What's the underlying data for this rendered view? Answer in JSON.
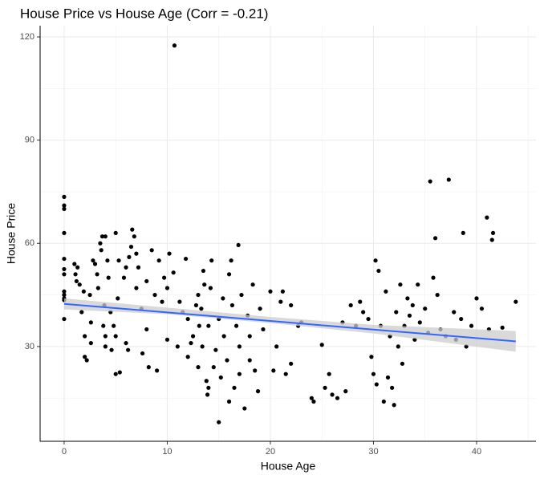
{
  "chart_data": {
    "type": "scatter",
    "title": "House Price vs House Age (Corr = -0.21)",
    "xlabel": "House Age",
    "ylabel": "House Price",
    "xlim": [
      -2.33,
      45.76
    ],
    "ylim": [
      2.45,
      123.27
    ],
    "xticks": [
      0,
      10,
      20,
      30,
      40
    ],
    "yticks": [
      30,
      60,
      90,
      120
    ],
    "minor_xticks": [
      5,
      15,
      25,
      35,
      45
    ],
    "minor_yticks": [
      15,
      45,
      75,
      105
    ],
    "grid": true,
    "color": "#000000",
    "x": [
      0,
      0,
      0,
      0,
      0,
      0,
      0,
      0,
      0,
      0,
      0,
      0,
      1,
      1.1,
      1.2,
      1.3,
      1.5,
      1.7,
      1.9,
      2,
      2,
      2.2,
      2.5,
      2.6,
      2.6,
      2.8,
      3,
      3.2,
      3.3,
      3.5,
      3.6,
      3.7,
      3.8,
      3.9,
      4,
      4,
      4,
      4.2,
      4.3,
      4.5,
      4.6,
      4.8,
      5,
      5,
      5,
      5.2,
      5.3,
      5.4,
      5.8,
      6,
      6,
      6.2,
      6.3,
      6.5,
      6.6,
      6.8,
      7,
      7,
      7.2,
      7.5,
      7.6,
      8,
      8,
      8.2,
      8.5,
      8.8,
      9,
      9.2,
      9.5,
      9.7,
      10,
      10,
      10.2,
      10.6,
      10.7,
      11,
      11.2,
      11.5,
      11.8,
      12,
      12,
      12.3,
      12.5,
      12.8,
      13,
      13,
      13.1,
      13.3,
      13.4,
      13.5,
      13.6,
      13.8,
      13.9,
      14,
      14,
      14.2,
      14.3,
      14.5,
      14.7,
      15,
      15,
      15.2,
      15.4,
      15.5,
      15.8,
      16,
      16,
      16.2,
      16.3,
      16.5,
      16.7,
      16.9,
      17,
      17,
      17.2,
      17.5,
      17.8,
      18,
      18,
      18.3,
      18.5,
      18.8,
      19,
      19.3,
      20,
      20.3,
      20.6,
      21,
      21.2,
      21.5,
      22,
      22,
      22.7,
      23,
      24,
      24.2,
      25,
      25.3,
      25.7,
      26,
      26.5,
      27,
      27.3,
      27.8,
      28.3,
      28.7,
      29,
      29.5,
      29.8,
      30,
      30.2,
      30.3,
      30.5,
      30.7,
      31,
      31.2,
      31.4,
      31.6,
      31.8,
      32,
      32.2,
      32.4,
      32.6,
      32.8,
      33,
      33.3,
      33.5,
      33.8,
      34,
      34.3,
      34.5,
      35,
      35.3,
      35.5,
      35.8,
      36,
      36.2,
      36.5,
      37,
      37.3,
      37.8,
      38,
      38.5,
      38.7,
      39,
      39.5,
      40,
      40.5,
      41,
      41.2,
      41.5,
      41.6,
      42.5,
      43.8
    ],
    "values": [
      73.5,
      71,
      70,
      63,
      55.5,
      52.5,
      51,
      46,
      45,
      44,
      43.5,
      38,
      54,
      51,
      49,
      53,
      48,
      40,
      46,
      33,
      27,
      26,
      45,
      37,
      31,
      55,
      54,
      51,
      47,
      60,
      58,
      62,
      36,
      42,
      30,
      33,
      62,
      55,
      50,
      40,
      29,
      36,
      22,
      33,
      63,
      44,
      55,
      22.5,
      50,
      53,
      31,
      29,
      56,
      59,
      64,
      62,
      57,
      47,
      53,
      41,
      28,
      49,
      35,
      24,
      58,
      45,
      23,
      55,
      43,
      50,
      32,
      47,
      57,
      51.5,
      117.5,
      30,
      43,
      40,
      55.5,
      27,
      38,
      31,
      33,
      42,
      24,
      45,
      36,
      41,
      30,
      52,
      48,
      20,
      16,
      18,
      36,
      47,
      55,
      24,
      29,
      38,
      8,
      21,
      44,
      33,
      26,
      51,
      14,
      55,
      42,
      18,
      36,
      59.5,
      22,
      30,
      45,
      12,
      39,
      26,
      33,
      48,
      23,
      17,
      41,
      35,
      46,
      23,
      30,
      43,
      46,
      22,
      42,
      25,
      36,
      37,
      15,
      14,
      30.5,
      18,
      22,
      16,
      15,
      37,
      17,
      42,
      36,
      43,
      40,
      38,
      27,
      22,
      55,
      19,
      52,
      36,
      14,
      46,
      21,
      33,
      18,
      13,
      40,
      30,
      48,
      25,
      36,
      44,
      39,
      42,
      32,
      48,
      37,
      41,
      34,
      78,
      50,
      61.5,
      45,
      35,
      33,
      78.5,
      40,
      32,
      38,
      63,
      30,
      36,
      44,
      41,
      67.5,
      35,
      61,
      63,
      35.5,
      43
    ],
    "fit": {
      "color": "#3366FF",
      "x": [
        0,
        43.8
      ],
      "y": [
        42.4,
        31.5
      ]
    },
    "band": {
      "color": "#cccccc",
      "x": [
        0,
        10,
        20,
        30,
        43.8
      ],
      "lower": [
        40.8,
        39.4,
        36.8,
        33.8,
        28.5
      ],
      "upper": [
        44.0,
        41.3,
        38.6,
        36.3,
        34.5
      ]
    }
  }
}
